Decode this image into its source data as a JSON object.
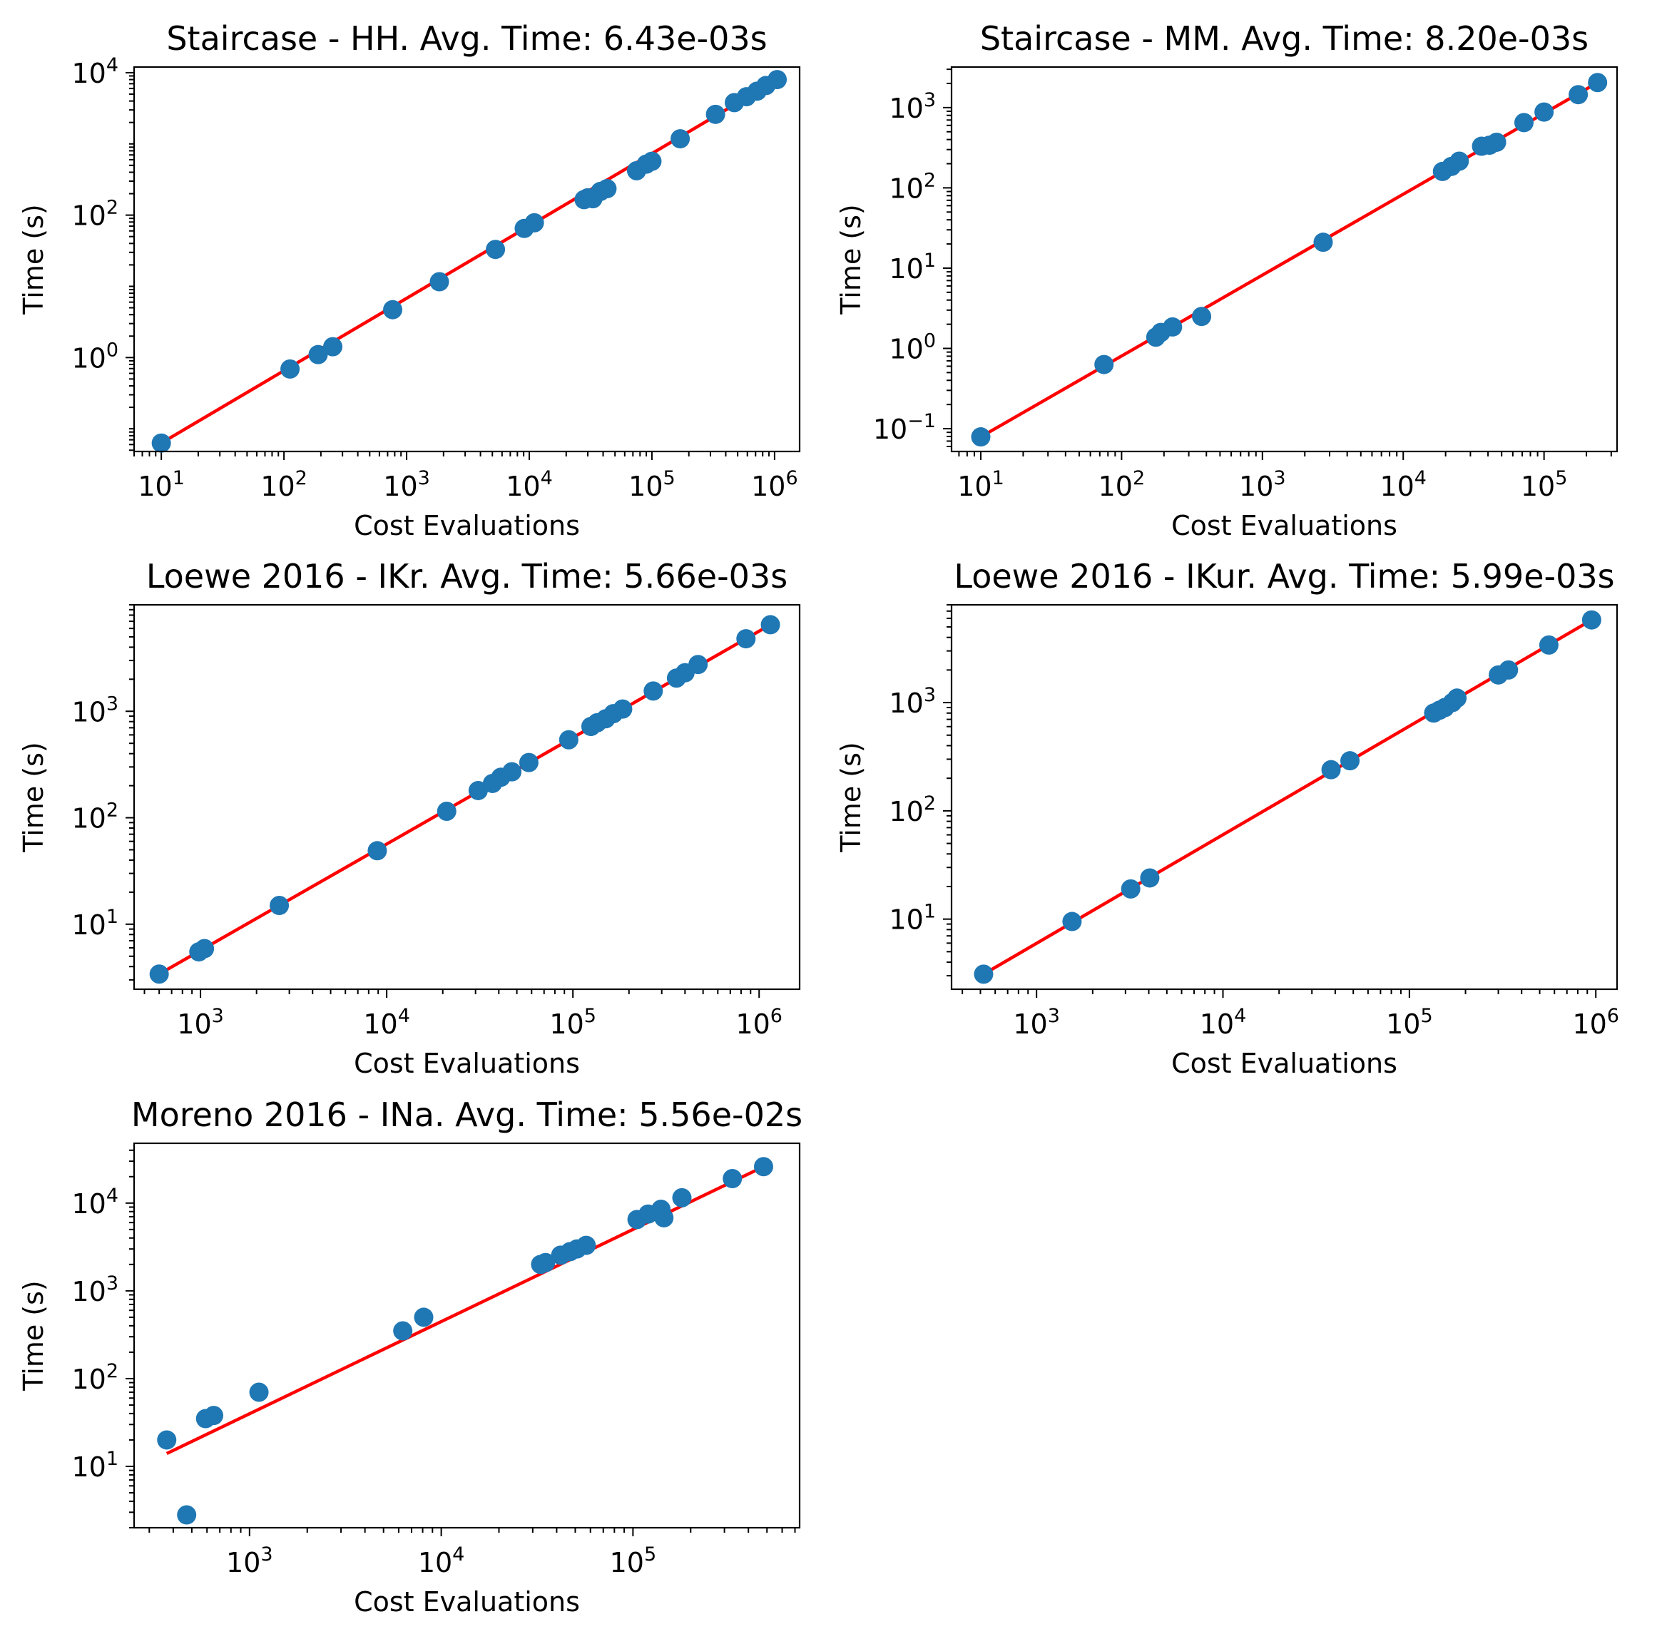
{
  "colors": {
    "points": "#1f77b4",
    "fit_line": "#ff0000",
    "axes": "#000000",
    "background": "#ffffff"
  },
  "chart_data": [
    {
      "type": "scatter",
      "title": "Staircase - HH. Avg. Time: 6.43e-03s",
      "xlabel": "Cost Evaluations",
      "ylabel": "Time (s)",
      "xscale": "log",
      "yscale": "log",
      "xlim": [
        6,
        1600000
      ],
      "ylim": [
        0.048,
        12000
      ],
      "xticks": [
        {
          "base": "10",
          "exp": "1",
          "value": 10
        },
        {
          "base": "10",
          "exp": "2",
          "value": 100
        },
        {
          "base": "10",
          "exp": "3",
          "value": 1000
        },
        {
          "base": "10",
          "exp": "4",
          "value": 10000
        },
        {
          "base": "10",
          "exp": "5",
          "value": 100000
        },
        {
          "base": "10",
          "exp": "6",
          "value": 1000000
        }
      ],
      "yticks": [
        {
          "base": "10",
          "exp": "0",
          "value": 1
        },
        {
          "base": "10",
          "exp": "2",
          "value": 100
        },
        {
          "base": "10",
          "exp": "4",
          "value": 10000
        }
      ],
      "grid": false,
      "series": [
        {
          "kind": "points",
          "x": [
            10,
            112,
            190,
            250,
            770,
            1850,
            5300,
            9100,
            11000,
            28000,
            30000,
            33000,
            38000,
            43000,
            75000,
            90000,
            100000,
            170000,
            330000,
            470000,
            590000,
            720000,
            850000,
            1050000
          ],
          "y": [
            0.063,
            0.69,
            1.1,
            1.42,
            4.7,
            11.6,
            33,
            65,
            78,
            165,
            175,
            170,
            215,
            235,
            420,
            520,
            570,
            1180,
            2600,
            3800,
            4600,
            5500,
            6600,
            8000
          ]
        },
        {
          "kind": "line",
          "x": [
            10,
            1050000
          ],
          "y": [
            0.063,
            8000
          ]
        }
      ]
    },
    {
      "type": "scatter",
      "title": "Staircase - MM. Avg. Time: 8.20e-03s",
      "xlabel": "Cost Evaluations",
      "ylabel": "Time (s)",
      "xscale": "log",
      "yscale": "log",
      "xlim": [
        6.2,
        330000
      ],
      "ylim": [
        0.052,
        3200
      ],
      "xticks": [
        {
          "base": "10",
          "exp": "1",
          "value": 10
        },
        {
          "base": "10",
          "exp": "2",
          "value": 100
        },
        {
          "base": "10",
          "exp": "3",
          "value": 1000
        },
        {
          "base": "10",
          "exp": "4",
          "value": 10000
        },
        {
          "base": "10",
          "exp": "5",
          "value": 100000
        }
      ],
      "yticks": [
        {
          "base": "10",
          "exp": "−1",
          "value": 0.1
        },
        {
          "base": "10",
          "exp": "0",
          "value": 1
        },
        {
          "base": "10",
          "exp": "1",
          "value": 10
        },
        {
          "base": "10",
          "exp": "2",
          "value": 100
        },
        {
          "base": "10",
          "exp": "3",
          "value": 1000
        }
      ],
      "grid": false,
      "series": [
        {
          "kind": "points",
          "x": [
            10,
            75,
            175,
            190,
            230,
            370,
            2700,
            19000,
            22000,
            25000,
            36000,
            41000,
            46000,
            72000,
            100000,
            175000,
            240000
          ],
          "y": [
            0.079,
            0.63,
            1.38,
            1.58,
            1.85,
            2.5,
            21,
            160,
            185,
            215,
            330,
            340,
            370,
            650,
            880,
            1450,
            2050
          ]
        },
        {
          "kind": "line",
          "x": [
            10,
            240000
          ],
          "y": [
            0.079,
            2050
          ]
        }
      ]
    },
    {
      "type": "scatter",
      "title": "Loewe 2016 - IKr. Avg. Time: 5.66e-03s",
      "xlabel": "Cost Evaluations",
      "ylabel": "Time (s)",
      "xscale": "log",
      "yscale": "log",
      "xlim": [
        440,
        1650000
      ],
      "ylim": [
        2.45,
        10000
      ],
      "xticks": [
        {
          "base": "10",
          "exp": "3",
          "value": 1000
        },
        {
          "base": "10",
          "exp": "4",
          "value": 10000
        },
        {
          "base": "10",
          "exp": "5",
          "value": 100000
        },
        {
          "base": "10",
          "exp": "6",
          "value": 1000000
        }
      ],
      "yticks": [
        {
          "base": "10",
          "exp": "1",
          "value": 10
        },
        {
          "base": "10",
          "exp": "2",
          "value": 100
        },
        {
          "base": "10",
          "exp": "3",
          "value": 1000
        }
      ],
      "grid": false,
      "series": [
        {
          "kind": "points",
          "x": [
            600,
            980,
            1050,
            2650,
            8900,
            21000,
            31000,
            37000,
            41000,
            47000,
            58000,
            95000,
            125000,
            135000,
            150000,
            165000,
            185000,
            270000,
            360000,
            400000,
            470000,
            850000,
            1150000
          ],
          "y": [
            3.4,
            5.5,
            5.9,
            15,
            49,
            115,
            180,
            210,
            240,
            270,
            330,
            540,
            720,
            780,
            850,
            950,
            1050,
            1550,
            2050,
            2300,
            2750,
            4800,
            6500
          ]
        },
        {
          "kind": "line",
          "x": [
            600,
            1150000
          ],
          "y": [
            3.4,
            6500
          ]
        }
      ]
    },
    {
      "type": "scatter",
      "title": "Loewe 2016 - IKur. Avg. Time: 5.99e-03s",
      "xlabel": "Cost Evaluations",
      "ylabel": "Time (s)",
      "xscale": "log",
      "yscale": "log",
      "xlim": [
        350,
        1300000
      ],
      "ylim": [
        2.25,
        8000
      ],
      "xticks": [
        {
          "base": "10",
          "exp": "3",
          "value": 1000
        },
        {
          "base": "10",
          "exp": "4",
          "value": 10000
        },
        {
          "base": "10",
          "exp": "5",
          "value": 100000
        },
        {
          "base": "10",
          "exp": "6",
          "value": 1000000
        }
      ],
      "yticks": [
        {
          "base": "10",
          "exp": "1",
          "value": 10
        },
        {
          "base": "10",
          "exp": "2",
          "value": 100
        },
        {
          "base": "10",
          "exp": "3",
          "value": 1000
        }
      ],
      "grid": false,
      "series": [
        {
          "kind": "points",
          "x": [
            520,
            1550,
            3200,
            4050,
            38000,
            48000,
            135000,
            145000,
            155000,
            170000,
            180000,
            300000,
            340000,
            560000,
            950000
          ],
          "y": [
            3.1,
            9.5,
            19,
            24,
            240,
            290,
            800,
            850,
            900,
            1000,
            1100,
            1800,
            2000,
            3400,
            5800
          ]
        },
        {
          "kind": "line",
          "x": [
            520,
            950000
          ],
          "y": [
            3.1,
            5800
          ]
        }
      ]
    },
    {
      "type": "scatter",
      "title": "Moreno 2016 - INa. Avg. Time: 5.56e-02s",
      "xlabel": "Cost Evaluations",
      "ylabel": "Time (s)",
      "xscale": "log",
      "yscale": "log",
      "xlim": [
        250,
        740000
      ],
      "ylim": [
        2.0,
        48000
      ],
      "xticks": [
        {
          "base": "10",
          "exp": "3",
          "value": 1000
        },
        {
          "base": "10",
          "exp": "4",
          "value": 10000
        },
        {
          "base": "10",
          "exp": "5",
          "value": 100000
        }
      ],
      "yticks": [
        {
          "base": "10",
          "exp": "1",
          "value": 10
        },
        {
          "base": "10",
          "exp": "2",
          "value": 100
        },
        {
          "base": "10",
          "exp": "3",
          "value": 1000
        },
        {
          "base": "10",
          "exp": "4",
          "value": 10000
        }
      ],
      "grid": false,
      "series": [
        {
          "kind": "points",
          "x": [
            370,
            470,
            590,
            650,
            1120,
            6300,
            8100,
            33000,
            35000,
            42000,
            47000,
            51000,
            57000,
            105000,
            120000,
            140000,
            145000,
            180000,
            330000,
            480000
          ],
          "y": [
            20,
            2.8,
            35,
            38,
            70,
            350,
            500,
            2000,
            2100,
            2550,
            2800,
            3000,
            3300,
            6500,
            7500,
            8500,
            6800,
            11500,
            19000,
            26000
          ]
        },
        {
          "kind": "line",
          "x": [
            370,
            480000
          ],
          "y": [
            14,
            26000
          ]
        }
      ]
    }
  ]
}
